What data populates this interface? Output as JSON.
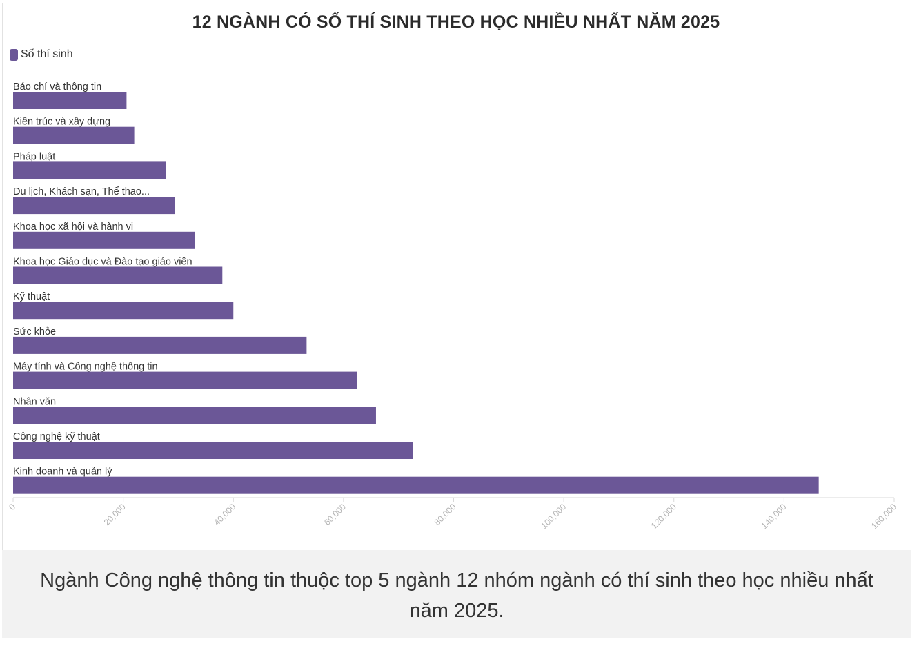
{
  "chart_data": {
    "type": "bar",
    "orientation": "horizontal",
    "title": "12 NGÀNH CÓ SỐ THÍ SINH THEO HỌC NHIỀU NHẤT NĂM 2025",
    "legend": {
      "label": "Số thí sinh",
      "placement": "top-left"
    },
    "color": "#6b5797",
    "categories": [
      "Báo chí và thông tin",
      "Kiến trúc và xây dựng",
      "Pháp luật",
      "Du lịch, Khách sạn, Thể thao...",
      "Khoa học xã hội và hành vi",
      "Khoa học Giáo dục và Đào tạo giáo viên",
      "Kỹ thuật",
      "Sức khỏe",
      "Máy tính và Công nghệ thông tin",
      "Nhân văn",
      "Công nghệ kỹ thuật",
      "Kinh doanh và quản lý"
    ],
    "values": [
      20600,
      22000,
      27800,
      29400,
      33000,
      38000,
      40000,
      53300,
      62400,
      65900,
      72600,
      146300
    ],
    "xlim": [
      0,
      160000
    ],
    "xticks": [
      "0",
      "20,000",
      "40,000",
      "60,000",
      "80,000",
      "100,000",
      "120,000",
      "140,000",
      "160,000"
    ],
    "grid": false
  },
  "caption": "Ngành Công nghệ thông tin thuộc top 5 ngành 12 nhóm ngành có thí sinh theo học nhiều nhất năm 2025."
}
